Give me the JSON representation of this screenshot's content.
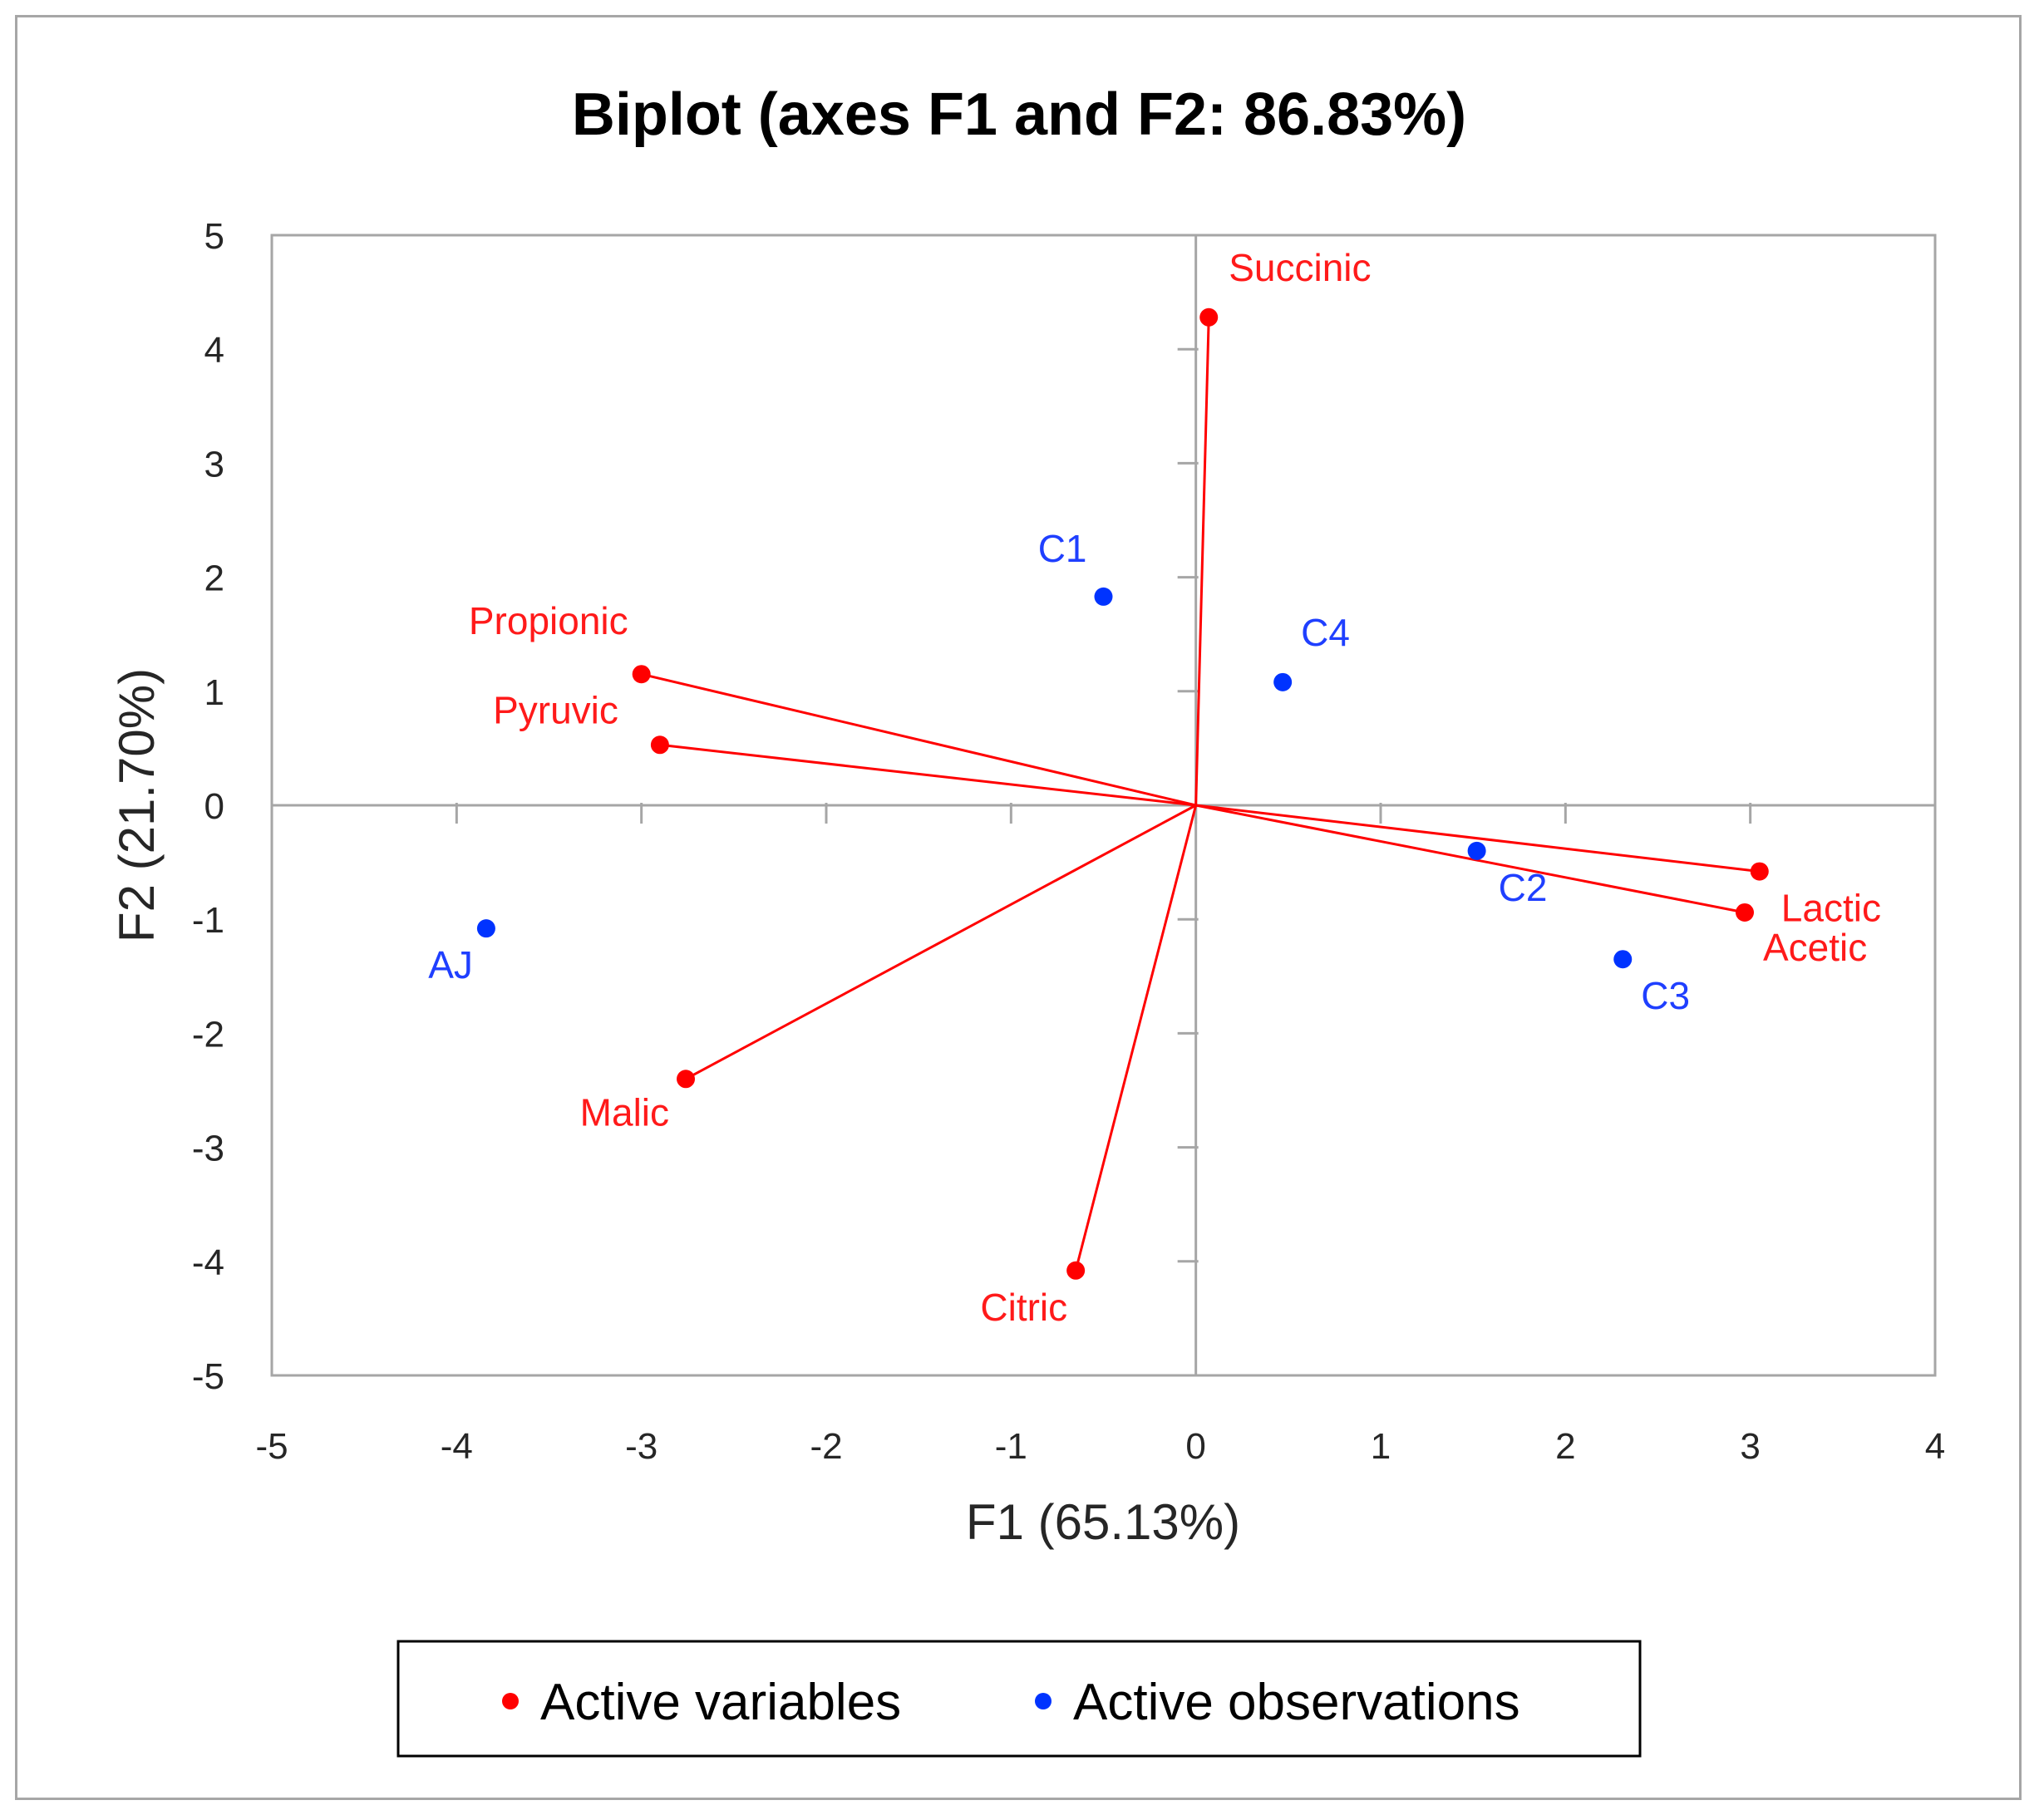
{
  "chart_data": {
    "type": "scatter",
    "subtype": "biplot",
    "title": "Biplot (axes F1 and F2: 86.83%)",
    "xlabel": "F1 (65.13%)",
    "ylabel": "F2 (21.70%)",
    "xlim": [
      -5,
      4
    ],
    "ylim": [
      -5,
      5
    ],
    "xticks": [
      "-5",
      "-4",
      "-3",
      "-2",
      "-1",
      "0",
      "1",
      "2",
      "3",
      "4"
    ],
    "yticks": [
      "-5",
      "-4",
      "-3",
      "-2",
      "-1",
      "0",
      "1",
      "2",
      "3",
      "4",
      "5"
    ],
    "grid": false,
    "legend_position": "bottom",
    "colors": {
      "variables": "#ff0000",
      "observations": "#0033ff",
      "axes": "#a6a6a6"
    },
    "series": [
      {
        "name": "Active variables",
        "draw_vectors": true,
        "points": [
          {
            "label": "Succinic",
            "x": 0.07,
            "y": 4.28
          },
          {
            "label": "Propionic",
            "x": -3.0,
            "y": 1.15
          },
          {
            "label": "Pyruvic",
            "x": -2.9,
            "y": 0.53
          },
          {
            "label": "Malic",
            "x": -2.76,
            "y": -2.4
          },
          {
            "label": "Citric",
            "x": -0.65,
            "y": -4.08
          },
          {
            "label": "Lactic",
            "x": 3.05,
            "y": -0.58
          },
          {
            "label": "Acetic",
            "x": 2.97,
            "y": -0.94
          }
        ]
      },
      {
        "name": "Active observations",
        "draw_vectors": false,
        "points": [
          {
            "label": "C1",
            "x": -0.5,
            "y": 1.83
          },
          {
            "label": "C4",
            "x": 0.47,
            "y": 1.08
          },
          {
            "label": "C2",
            "x": 1.52,
            "y": -0.4
          },
          {
            "label": "C3",
            "x": 2.31,
            "y": -1.35
          },
          {
            "label": "AJ",
            "x": -3.84,
            "y": -1.08
          }
        ]
      }
    ]
  }
}
